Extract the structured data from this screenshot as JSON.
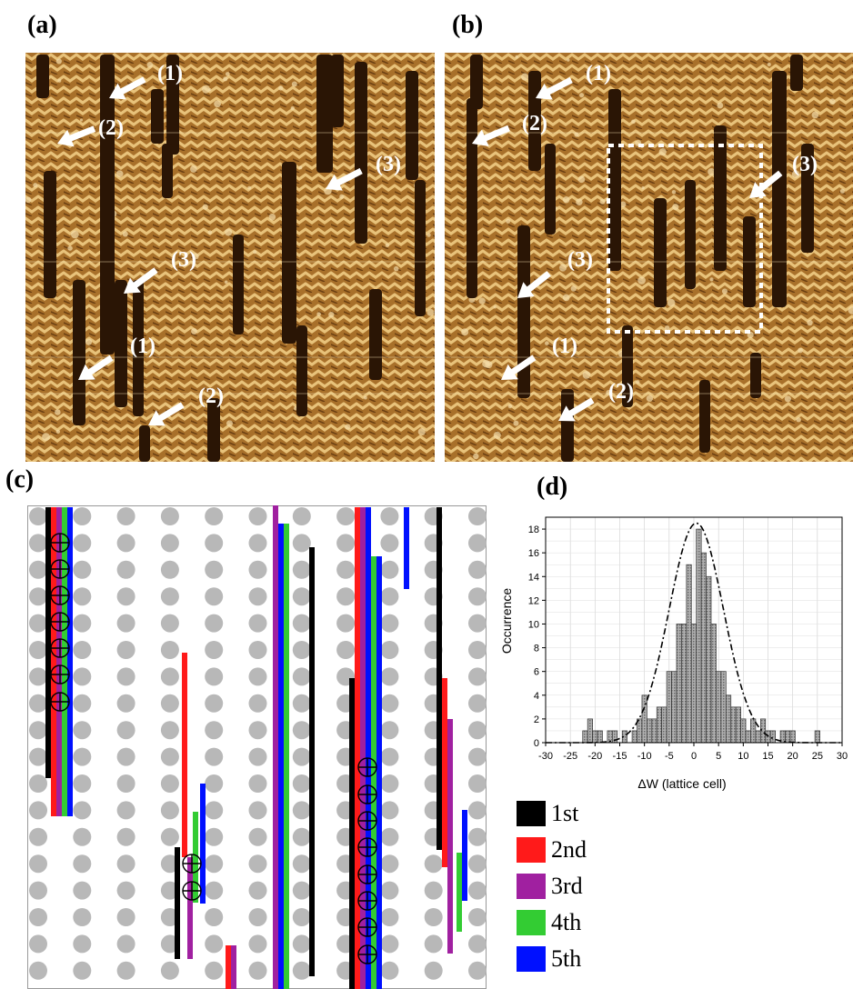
{
  "panels": {
    "a": "(a)",
    "b": "(b)",
    "c": "(c)",
    "d": "(d)"
  },
  "colors": {
    "stm_base": "#a8702a",
    "stm_light": "#e8c27a",
    "stm_dark": "#2a1505",
    "lattice_dot": "#b8b8b8",
    "first": "#000000",
    "second": "#ff1a1a",
    "third": "#a020a0",
    "fourth": "#33cc33",
    "fifth": "#0010ff",
    "hist_bar": "#9a9a9a"
  },
  "image_a": {
    "arrow_labels": [
      "(1)",
      "(2)",
      "(3)",
      "(3)",
      "(1)",
      "(2)"
    ]
  },
  "image_b": {
    "arrow_labels": [
      "(1)",
      "(2)",
      "(3)",
      "(3)",
      "(1)",
      "(2)"
    ]
  },
  "legend": [
    {
      "label": "1st",
      "color": "#000000"
    },
    {
      "label": "2nd",
      "color": "#ff1a1a"
    },
    {
      "label": "3rd",
      "color": "#a020a0"
    },
    {
      "label": "4th",
      "color": "#33cc33"
    },
    {
      "label": "5th",
      "color": "#0010ff"
    }
  ],
  "chart_data": {
    "type": "bar",
    "xlabel": "ΔW (lattice cell)",
    "ylabel": "Occurrence",
    "xlim": [
      -30,
      30
    ],
    "ylim": [
      0,
      19
    ],
    "xticks": [
      -30,
      -25,
      -20,
      -15,
      -10,
      -5,
      0,
      5,
      10,
      15,
      20,
      25,
      30
    ],
    "yticks": [
      0,
      2,
      4,
      6,
      8,
      10,
      12,
      14,
      16,
      18
    ],
    "grid": true,
    "bin_width": 1,
    "bins": [
      {
        "x": -22,
        "y": 1
      },
      {
        "x": -21,
        "y": 2
      },
      {
        "x": -20,
        "y": 1
      },
      {
        "x": -19,
        "y": 1
      },
      {
        "x": -17,
        "y": 1
      },
      {
        "x": -16,
        "y": 1
      },
      {
        "x": -14,
        "y": 1
      },
      {
        "x": -12,
        "y": 1
      },
      {
        "x": -11,
        "y": 2
      },
      {
        "x": -10,
        "y": 4
      },
      {
        "x": -9,
        "y": 2
      },
      {
        "x": -8,
        "y": 2
      },
      {
        "x": -7,
        "y": 3
      },
      {
        "x": -6,
        "y": 3
      },
      {
        "x": -5,
        "y": 6
      },
      {
        "x": -4,
        "y": 6
      },
      {
        "x": -3,
        "y": 10
      },
      {
        "x": -2,
        "y": 10
      },
      {
        "x": -1,
        "y": 15
      },
      {
        "x": 0,
        "y": 10
      },
      {
        "x": 1,
        "y": 18
      },
      {
        "x": 2,
        "y": 16
      },
      {
        "x": 3,
        "y": 14
      },
      {
        "x": 4,
        "y": 10
      },
      {
        "x": 5,
        "y": 6
      },
      {
        "x": 6,
        "y": 6
      },
      {
        "x": 7,
        "y": 4
      },
      {
        "x": 8,
        "y": 3
      },
      {
        "x": 9,
        "y": 3
      },
      {
        "x": 10,
        "y": 2
      },
      {
        "x": 11,
        "y": 1
      },
      {
        "x": 12,
        "y": 2
      },
      {
        "x": 13,
        "y": 1
      },
      {
        "x": 14,
        "y": 2
      },
      {
        "x": 15,
        "y": 1
      },
      {
        "x": 16,
        "y": 1
      },
      {
        "x": 18,
        "y": 1
      },
      {
        "x": 19,
        "y": 1
      },
      {
        "x": 20,
        "y": 1
      },
      {
        "x": 25,
        "y": 1
      }
    ],
    "fit": {
      "type": "gaussian",
      "center": 0.5,
      "amplitude": 18.5,
      "sigma": 5.5
    }
  }
}
